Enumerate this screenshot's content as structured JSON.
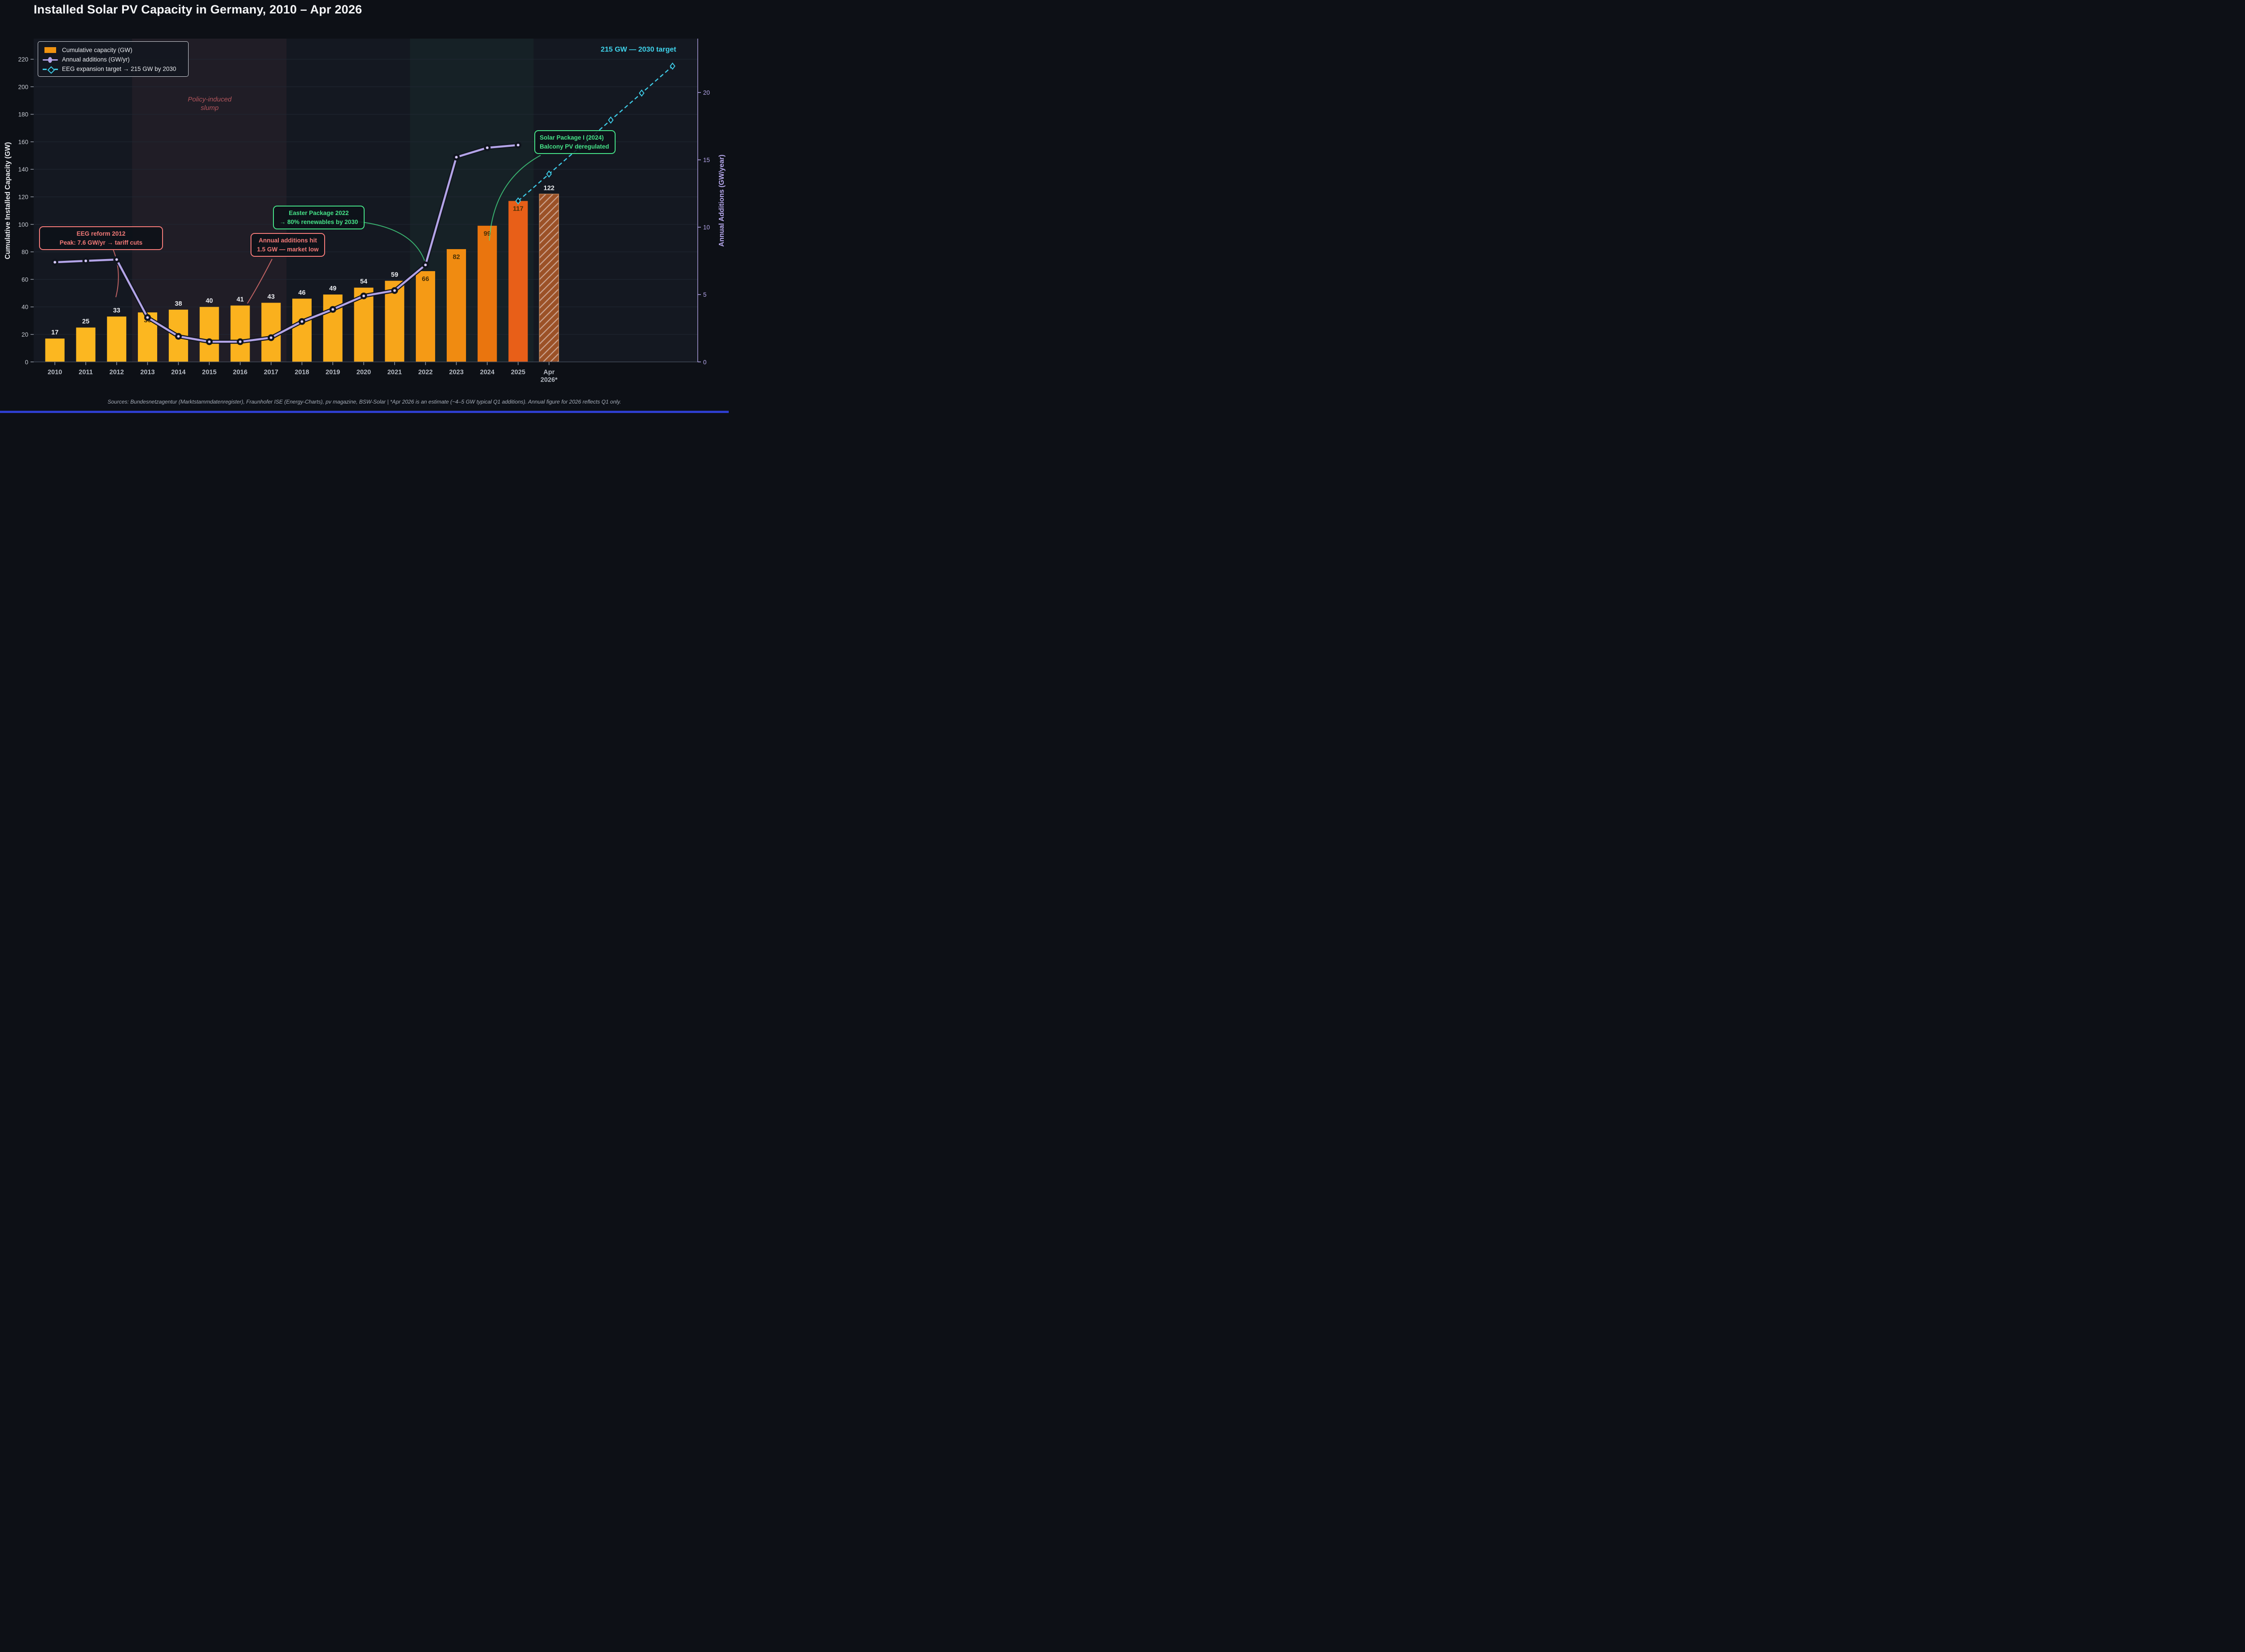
{
  "title": "Installed Solar PV Capacity in Germany, 2010 – Apr 2026",
  "footer": "Sources: Bundesnetzagentur (Marktstammdatenregister), Fraunhofer ISE (Energy-Charts), pv magazine, BSW-Solar   |   *Apr 2026 is an estimate (~4–5 GW typical Q1 additions). Annual figure for 2026 reflects Q1 only.",
  "legend": {
    "items": [
      {
        "label": "Cumulative capacity (GW)"
      },
      {
        "label": "Annual additions (GW/yr)"
      },
      {
        "label": "EEG expansion target → 215 GW by 2030"
      }
    ]
  },
  "axes": {
    "left": {
      "title": "Cumulative Installed Capacity (GW)",
      "ticks": [
        0,
        20,
        40,
        60,
        80,
        100,
        120,
        140,
        160,
        180,
        200,
        220
      ],
      "max": 235
    },
    "right": {
      "title": "Annual Additions (GW/year)",
      "ticks": [
        0,
        5,
        10,
        15,
        20
      ],
      "max": 24
    },
    "x": {
      "labels": [
        "2010",
        "2011",
        "2012",
        "2013",
        "2014",
        "2015",
        "2016",
        "2017",
        "2018",
        "2019",
        "2020",
        "2021",
        "2022",
        "2023",
        "2024",
        "2025",
        "Apr|2026*"
      ]
    }
  },
  "annotations": {
    "eeg": {
      "line1": "EEG reform 2012",
      "line2": "Peak: 7.6 GW/yr → tariff cuts"
    },
    "low": {
      "line1": "Annual additions hit",
      "line2": "1.5 GW — market low"
    },
    "easter": {
      "line1": "Easter Package 2022",
      "line2": "→ 80% renewables by 2030"
    },
    "solar": {
      "line1": "Solar Package I (2024)",
      "line2": "Balcony PV deregulated"
    },
    "slump": {
      "line1": "Policy-induced",
      "line2": "slump"
    },
    "target": "215 GW — 2030 target"
  },
  "chart_data": {
    "type": "bar",
    "title": "Installed Solar PV Capacity in Germany, 2010 – Apr 2026",
    "categories": [
      "2010",
      "2011",
      "2012",
      "2013",
      "2014",
      "2015",
      "2016",
      "2017",
      "2018",
      "2019",
      "2020",
      "2021",
      "2022",
      "2023",
      "2024",
      "2025",
      "Apr 2026*"
    ],
    "series": [
      {
        "name": "Cumulative capacity (GW)",
        "type": "bar",
        "axis": "left",
        "values": [
          17,
          25,
          33,
          36,
          38,
          40,
          41,
          43,
          46,
          49,
          54,
          59,
          66,
          82,
          99,
          117,
          122
        ],
        "label_inside_indices": [
          3,
          12,
          13,
          14,
          15
        ],
        "hatched_index": 16
      },
      {
        "name": "Annual additions (GW/yr)",
        "type": "line",
        "axis": "right",
        "values": [
          7.4,
          7.5,
          7.6,
          3.3,
          1.9,
          1.5,
          1.5,
          1.8,
          3.0,
          3.9,
          4.9,
          5.3,
          7.2,
          15.2,
          15.9,
          16.1
        ]
      },
      {
        "name": "EEG expansion target → 215 GW by 2030",
        "type": "dashed-line",
        "axis": "left",
        "points": [
          {
            "xi": 15,
            "gw": 117
          },
          {
            "xi": 16,
            "gw": 136.6
          },
          {
            "xi": 17,
            "gw": 156.2
          },
          {
            "xi": 18,
            "gw": 175.8
          },
          {
            "xi": 19,
            "gw": 195.4
          },
          {
            "xi": 20,
            "gw": 215
          }
        ]
      }
    ],
    "bands": [
      {
        "name": "policy-induced-slump",
        "from_index": 2.5,
        "to_index": 7.5,
        "color": "rgba(244,113,116,0.06)"
      },
      {
        "name": "expansion-policy-era",
        "from_index": 11.5,
        "to_index": 15.5,
        "color": "rgba(74,222,128,0.05)"
      }
    ],
    "ylim_left": [
      0,
      235
    ],
    "ylim_right": [
      0,
      24
    ],
    "grid": "horizontal",
    "legend_position": "upper-left"
  },
  "colors": {
    "fig_bg": "#0d1016",
    "plot_bg": "#141821",
    "grid": "#212834",
    "bar_colors": [
      "#fcb720",
      "#fcb720",
      "#fcb720",
      "#fcb720",
      "#fbb51f",
      "#fbb31e",
      "#fbb21e",
      "#fab01d",
      "#fab01e",
      "#f9ad1c",
      "#f8aa1b",
      "#f7a51a",
      "#f59a15",
      "#f08b11",
      "#ea750e",
      "#e85f18",
      "hatch"
    ],
    "hatch": {
      "base": "#9b5127",
      "stripe": "#c9a08c",
      "edge": "#bf8357"
    },
    "label_above": "#e9ebef",
    "label_inside": "#4a3005",
    "line_purple": "#b3a4e7",
    "marker_inner": "#cabdf2",
    "casing": "#10141d",
    "target_cyan": "#3ec9e4",
    "salmon": "#f37a78",
    "green": "#46e288",
    "lavender": "#b6a8ec",
    "tick_left": "#c6cad2",
    "year_label": "#b6bbc4",
    "spine_bottom": "#3f4654",
    "tick_mark": "#8f96a2",
    "bottom_strip": "#2e3ecf"
  }
}
